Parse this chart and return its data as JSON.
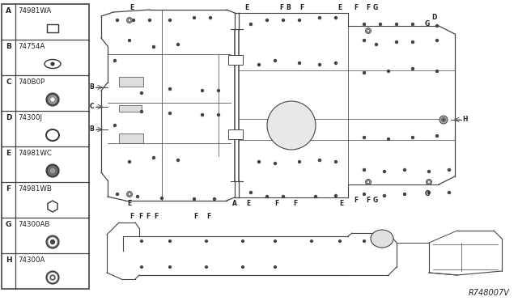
{
  "bg_color": "#ffffff",
  "legend_bg": "#ffffff",
  "border_color": "#444444",
  "text_color": "#222222",
  "diagram_color": "#444444",
  "legend_items": [
    {
      "letter": "A",
      "part_num": "74981WA",
      "shape": "square"
    },
    {
      "letter": "B",
      "part_num": "74754A",
      "shape": "oval_dot"
    },
    {
      "letter": "C",
      "part_num": "740B0P",
      "shape": "circle_gear"
    },
    {
      "letter": "D",
      "part_num": "74300J",
      "shape": "oval_open"
    },
    {
      "letter": "E",
      "part_num": "74981WC",
      "shape": "circle_gear2"
    },
    {
      "letter": "F",
      "part_num": "74981WB",
      "shape": "hexagon"
    },
    {
      "letter": "G",
      "part_num": "74300AB",
      "shape": "circle_target"
    },
    {
      "letter": "H",
      "part_num": "74300A",
      "shape": "circle_target2"
    }
  ],
  "ref_code": "R748007V"
}
